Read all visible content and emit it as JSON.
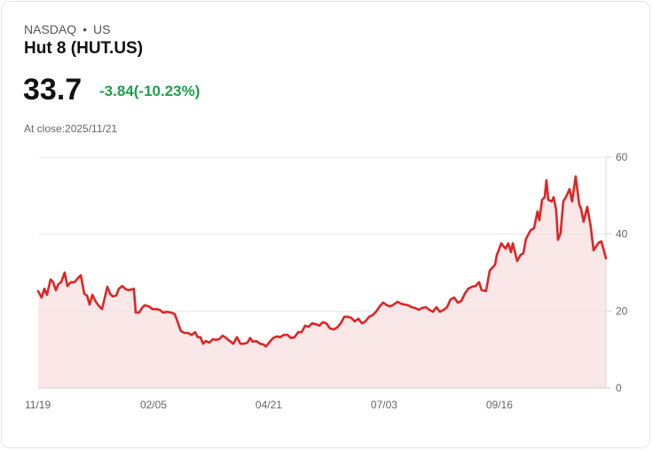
{
  "header": {
    "exchange": "NASDAQ",
    "separator": "•",
    "region": "US",
    "title": "Hut 8 (HUT.US)",
    "price": "33.7",
    "change": "-3.84(-10.23%)",
    "close_label": "At close:2025/11/21"
  },
  "colors": {
    "line": "#dc2626",
    "fill": "#fae8e8",
    "up": "#1e9e4a",
    "grid": "#e6e6e6"
  },
  "chart_data": {
    "type": "area",
    "title": "Hut 8 (HUT.US)",
    "ylim": [
      0,
      60
    ],
    "yticks": [
      0,
      20,
      40,
      60
    ],
    "xlim": [
      0,
      246.2
    ],
    "xticks": [
      {
        "x": 0,
        "label": "11/19"
      },
      {
        "x": 50,
        "label": "02/05"
      },
      {
        "x": 100,
        "label": "04/21"
      },
      {
        "x": 150,
        "label": "07/03"
      },
      {
        "x": 200,
        "label": "09/16"
      }
    ],
    "grid": true,
    "points": [
      [
        0,
        25.2
      ],
      [
        1.5,
        23.5
      ],
      [
        2.7,
        25.8
      ],
      [
        3.8,
        24.2
      ],
      [
        5.4,
        28.2
      ],
      [
        6.5,
        27.5
      ],
      [
        7.7,
        25.4
      ],
      [
        8.8,
        27
      ],
      [
        10,
        27.5
      ],
      [
        11.5,
        30
      ],
      [
        12.7,
        26.5
      ],
      [
        14.2,
        27.5
      ],
      [
        15.8,
        27.5
      ],
      [
        17.3,
        28.6
      ],
      [
        18.5,
        29.3
      ],
      [
        20,
        24.5
      ],
      [
        21.2,
        24
      ],
      [
        22.3,
        21.7
      ],
      [
        23.5,
        24.2
      ],
      [
        25,
        22.4
      ],
      [
        26.5,
        21.2
      ],
      [
        27.7,
        20.5
      ],
      [
        28.8,
        23.3
      ],
      [
        30,
        26.3
      ],
      [
        31.2,
        24.5
      ],
      [
        32.3,
        23.8
      ],
      [
        33.8,
        24
      ],
      [
        35,
        25.8
      ],
      [
        36.5,
        26.5
      ],
      [
        37.7,
        25.8
      ],
      [
        39.2,
        25.4
      ],
      [
        41.5,
        25.8
      ],
      [
        42.3,
        19.6
      ],
      [
        43.8,
        19.6
      ],
      [
        45,
        20.8
      ],
      [
        46.2,
        21.5
      ],
      [
        48.1,
        21.2
      ],
      [
        49.6,
        20.5
      ],
      [
        51.2,
        20.5
      ],
      [
        52.7,
        20.3
      ],
      [
        54.2,
        19.6
      ],
      [
        55.8,
        19.8
      ],
      [
        57.7,
        19.6
      ],
      [
        59.2,
        19.2
      ],
      [
        60.4,
        17.3
      ],
      [
        61.9,
        14.8
      ],
      [
        63.5,
        14.3
      ],
      [
        65,
        14.3
      ],
      [
        66.5,
        13.8
      ],
      [
        68.1,
        14.5
      ],
      [
        69.2,
        13.2
      ],
      [
        70.4,
        13.2
      ],
      [
        71.5,
        11.5
      ],
      [
        72.7,
        12.2
      ],
      [
        74.2,
        11.8
      ],
      [
        75.8,
        12.7
      ],
      [
        76.9,
        12.5
      ],
      [
        78.5,
        12.7
      ],
      [
        80,
        13.6
      ],
      [
        81.5,
        13
      ],
      [
        83.1,
        12.2
      ],
      [
        84.6,
        11.5
      ],
      [
        86.2,
        13.2
      ],
      [
        87.7,
        11.5
      ],
      [
        89.2,
        11.5
      ],
      [
        90.8,
        11.8
      ],
      [
        91.9,
        13
      ],
      [
        93.1,
        12
      ],
      [
        94.6,
        12.2
      ],
      [
        96.2,
        11.5
      ],
      [
        97.7,
        11.3
      ],
      [
        98.8,
        10.8
      ],
      [
        100.4,
        12
      ],
      [
        101.9,
        13
      ],
      [
        103.5,
        13.4
      ],
      [
        105,
        13.2
      ],
      [
        106.5,
        13.8
      ],
      [
        108.1,
        13.8
      ],
      [
        109.6,
        13
      ],
      [
        111.2,
        13.2
      ],
      [
        112.7,
        14.5
      ],
      [
        114.2,
        14.5
      ],
      [
        115.8,
        16.2
      ],
      [
        117.3,
        15.9
      ],
      [
        118.8,
        16.8
      ],
      [
        120.4,
        16.6
      ],
      [
        121.9,
        16.2
      ],
      [
        123.5,
        17.1
      ],
      [
        125,
        16.8
      ],
      [
        126.5,
        15.5
      ],
      [
        128.1,
        15.2
      ],
      [
        129.6,
        15.7
      ],
      [
        131.2,
        16.8
      ],
      [
        132.7,
        18.5
      ],
      [
        134.2,
        18.5
      ],
      [
        135.8,
        18.2
      ],
      [
        137.3,
        17.3
      ],
      [
        138.8,
        18
      ],
      [
        140.4,
        16.8
      ],
      [
        141.9,
        17.3
      ],
      [
        143.5,
        18.5
      ],
      [
        145,
        18.9
      ],
      [
        146.5,
        19.8
      ],
      [
        148.1,
        21.2
      ],
      [
        149.6,
        22.2
      ],
      [
        151.2,
        21.5
      ],
      [
        152.7,
        21.2
      ],
      [
        154.2,
        21.7
      ],
      [
        155.8,
        22.4
      ],
      [
        157.3,
        21.9
      ],
      [
        158.8,
        21.7
      ],
      [
        160.4,
        21.5
      ],
      [
        161.9,
        21
      ],
      [
        163.5,
        20.8
      ],
      [
        165,
        20.3
      ],
      [
        166.5,
        20.8
      ],
      [
        168.1,
        21
      ],
      [
        169.6,
        20.3
      ],
      [
        171.2,
        19.8
      ],
      [
        172.7,
        21
      ],
      [
        174.2,
        19.8
      ],
      [
        175.8,
        20.3
      ],
      [
        177.3,
        21
      ],
      [
        178.8,
        23
      ],
      [
        180.4,
        23.5
      ],
      [
        181.9,
        22.2
      ],
      [
        183.5,
        22.6
      ],
      [
        185,
        24.5
      ],
      [
        186.5,
        25.8
      ],
      [
        188.1,
        26.3
      ],
      [
        189.6,
        26.5
      ],
      [
        191.2,
        27.5
      ],
      [
        192.3,
        25.4
      ],
      [
        194.2,
        25.2
      ],
      [
        195.8,
        30.5
      ],
      [
        198.1,
        32
      ],
      [
        198.8,
        34.4
      ],
      [
        200.8,
        37.6
      ],
      [
        202.7,
        36.2
      ],
      [
        203.8,
        37.6
      ],
      [
        205,
        35.3
      ],
      [
        205.8,
        37.6
      ],
      [
        207.7,
        33
      ],
      [
        209.2,
        34.6
      ],
      [
        210.4,
        35
      ],
      [
        211.5,
        38.7
      ],
      [
        213.5,
        41
      ],
      [
        215,
        41.5
      ],
      [
        216.5,
        45.9
      ],
      [
        217.3,
        43.6
      ],
      [
        218.5,
        48.9
      ],
      [
        219.6,
        49.6
      ],
      [
        220.4,
        54
      ],
      [
        221.2,
        48.9
      ],
      [
        222.7,
        48.5
      ],
      [
        223.5,
        49.6
      ],
      [
        224.6,
        46.2
      ],
      [
        225.4,
        38.5
      ],
      [
        226.5,
        40.2
      ],
      [
        227.7,
        48.5
      ],
      [
        228.8,
        49.6
      ],
      [
        230.4,
        51.7
      ],
      [
        231.5,
        48.5
      ],
      [
        233.1,
        55
      ],
      [
        234.6,
        47.8
      ],
      [
        235.4,
        46.6
      ],
      [
        236.5,
        43.2
      ],
      [
        238.1,
        47.1
      ],
      [
        239.6,
        42
      ],
      [
        240.8,
        35.8
      ],
      [
        243.1,
        37.8
      ],
      [
        244.2,
        38.1
      ],
      [
        246.2,
        33.7
      ]
    ]
  }
}
